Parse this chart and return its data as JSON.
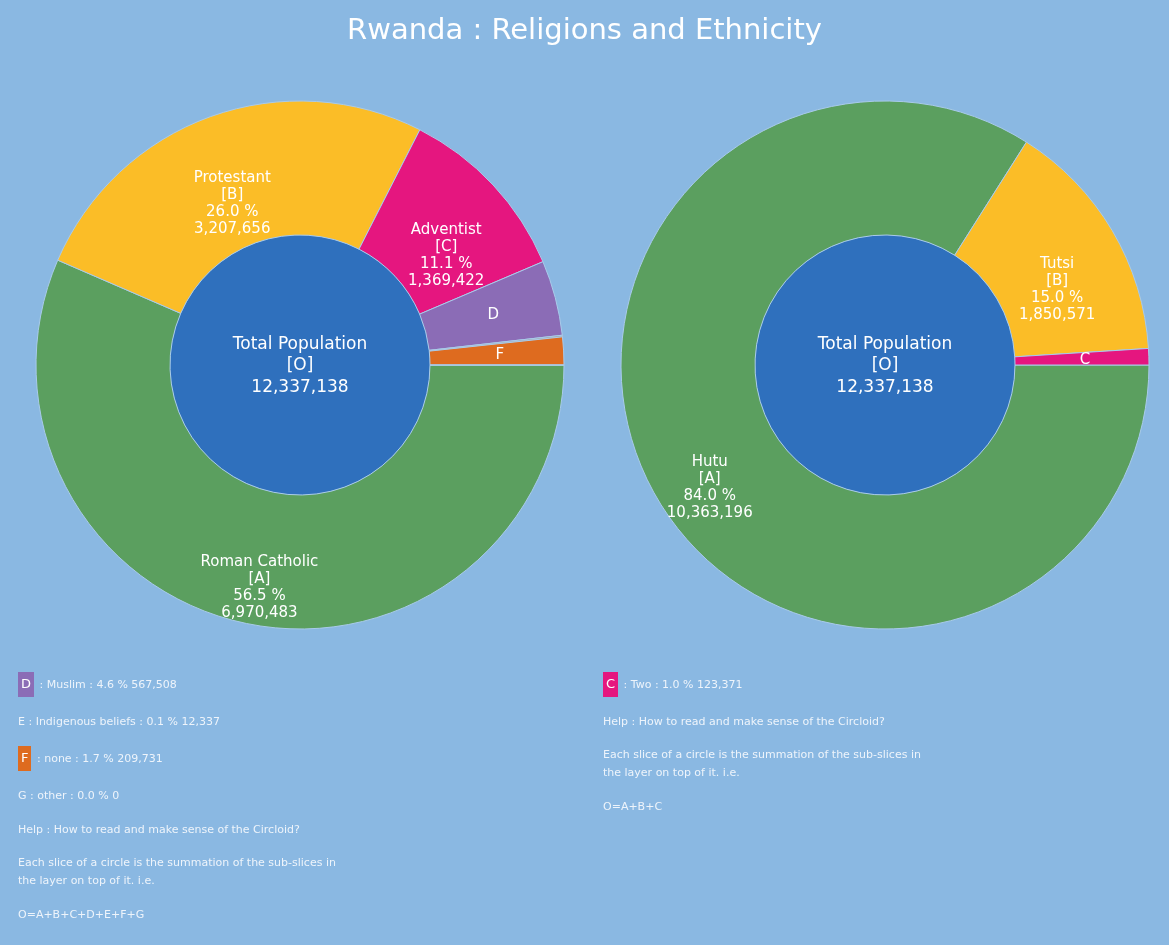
{
  "chart_data": [
    {
      "type": "donut",
      "title": "Rwanda : Religions and Ethnicity",
      "categories": [
        "Roman Catholic",
        "Protestant",
        "Adventist",
        "D",
        null,
        "F",
        null
      ],
      "values": [
        6970483,
        3207656,
        1369422,
        567508,
        12337,
        209731,
        0
      ],
      "value_labels": [
        "[A]\n56.5 %\n6,970,483",
        "[B]\n26.0 %\n3,207,656",
        "[C]\n11.1 %\n1,369,422",
        null,
        null,
        null,
        null
      ],
      "colors": [
        "#5b9f5f",
        "#fbbd27",
        "#e5167f",
        "#8b6cb6",
        "#a0a0a0",
        "#de6b1f",
        "#808080"
      ],
      "annotations": [
        "Total Population\n[O]\n12,337,138",
        "D : Muslim : 4.6 %  567,508",
        "E : Indigenous beliefs : 0.1 %  12,337",
        "F : none : 1.7 %  209,731",
        "G : other : 0.0 %  0",
        "Help : How to read and make sense of the Circloid?",
        "Each slice of a circle is the summation of the sub-slices in\nthe layer on top of it. i.e.",
        "O=A+B+C+D+E+F+G"
      ]
    },
    {
      "type": "donut",
      "categories": [
        "Hutu",
        "Tutsi",
        "C"
      ],
      "values": [
        10363196,
        1850571,
        123371
      ],
      "value_labels": [
        "[A]\n84.0 %\n10,363,196",
        "[B]\n15.0 %\n1,850,571",
        null
      ],
      "colors": [
        "#5b9f5f",
        "#fbbd27",
        "#e5167f"
      ],
      "annotations": [
        "Total Population\n[O]\n12,337,138",
        "C : Two : 1.0 %  123,371",
        "Help : How to read and make sense of the Circloid?",
        "Each slice of a circle is the summation of the sub-slices in\nthe layer on top of it. i.e.",
        "O=A+B+C"
      ]
    }
  ]
}
